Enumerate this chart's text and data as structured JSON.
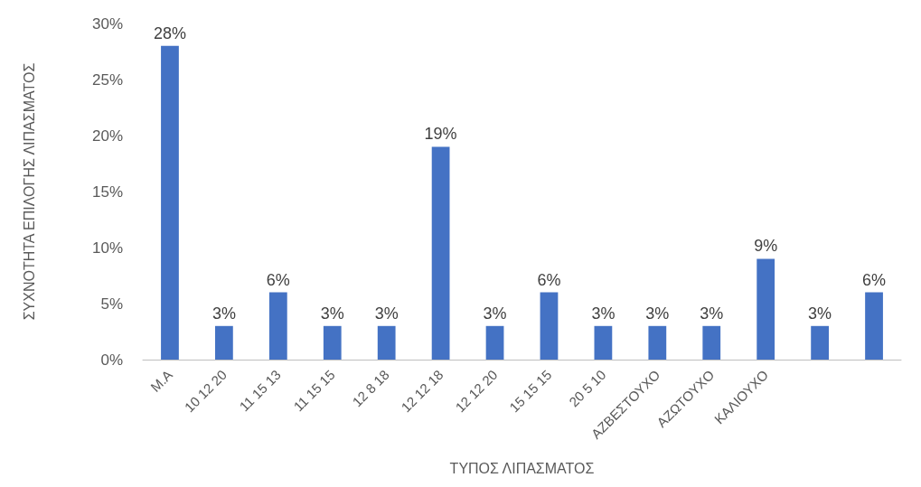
{
  "chart_data": {
    "type": "bar",
    "xlabel": "ΤΥΠΟΣ ΛΙΠΑΣΜΑΤΟΣ",
    "ylabel": "ΣΥΧΝΟΤΗΤΑ ΕΠΙΛΟΓΗΣ ΛΙΠΑΣΜΑΤΟΣ",
    "categories": [
      "Μ.Α",
      "10 12 20",
      "11 15 13",
      "11 15 15",
      "12 8 18",
      "12 12 18",
      "12 12 20",
      "15 15 15",
      "20 5 10",
      "ΑΖΒΕΣΤΟΥΧΟ",
      "ΑΖΩΤΟΥΧΟ",
      "ΚΑΛΙΟΥΧΟ",
      null,
      null
    ],
    "values": [
      28,
      3,
      6,
      3,
      3,
      19,
      3,
      6,
      3,
      3,
      3,
      9,
      3,
      6
    ],
    "value_labels": [
      "28%",
      "3%",
      "6%",
      "3%",
      "3%",
      "19%",
      "3%",
      "6%",
      "3%",
      "3%",
      "3%",
      "9%",
      "3%",
      "6%"
    ],
    "color": "#4472c4",
    "ylim": [
      0,
      30
    ],
    "yticks": [
      {
        "value": 0,
        "label": "0%"
      },
      {
        "value": 5,
        "label": "5%"
      },
      {
        "value": 10,
        "label": "10%"
      },
      {
        "value": 15,
        "label": "15%"
      },
      {
        "value": 20,
        "label": "20%"
      },
      {
        "value": 25,
        "label": "25%"
      },
      {
        "value": 30,
        "label": "30%"
      }
    ],
    "grid": false
  }
}
